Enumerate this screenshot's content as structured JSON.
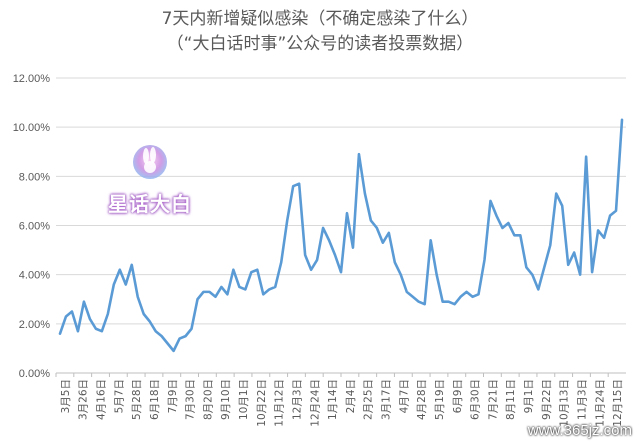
{
  "chart_data": {
    "type": "line",
    "title": "7天内新增疑似感染（不确定感染了什么）",
    "subtitle": "（“大白话时事”公众号的读者投票数据）",
    "ylim": [
      0,
      12
    ],
    "y_ticks": [
      "0.00%",
      "2.00%",
      "4.00%",
      "6.00%",
      "8.00%",
      "10.00%",
      "12.00%"
    ],
    "y_unit": "%",
    "grid": "horizontal",
    "x_tick_labels": [
      "3月5日",
      "3月26日",
      "4月16日",
      "5月7日",
      "5月28日",
      "6月18日",
      "7月9日",
      "7月30日",
      "8月20日",
      "9月10日",
      "10月1日",
      "10月22日",
      "11月12日",
      "12月3日",
      "12月24日",
      "1月14日",
      "2月4日",
      "2月25日",
      "3月17日",
      "4月7日",
      "4月28日",
      "5月19日",
      "6月9日",
      "6月30日",
      "7月21日",
      "8月11日",
      "9月1日",
      "9月22日",
      "10月13日",
      "11月3日",
      "11月24日",
      "12月15日"
    ],
    "series": [
      {
        "color": "#5b9bd5",
        "values": [
          1.6,
          2.3,
          2.5,
          1.7,
          2.9,
          2.2,
          1.8,
          1.7,
          2.4,
          3.6,
          4.2,
          3.6,
          4.4,
          3.1,
          2.4,
          2.1,
          1.7,
          1.5,
          1.2,
          0.9,
          1.4,
          1.5,
          1.8,
          3.0,
          3.3,
          3.3,
          3.1,
          3.5,
          3.2,
          4.2,
          3.5,
          3.4,
          4.1,
          4.2,
          3.2,
          3.4,
          3.5,
          4.5,
          6.2,
          7.6,
          7.7,
          4.8,
          4.2,
          4.6,
          5.9,
          5.4,
          4.8,
          4.1,
          6.5,
          5.1,
          8.9,
          7.3,
          6.2,
          5.9,
          5.3,
          5.7,
          4.5,
          4.0,
          3.3,
          3.1,
          2.9,
          2.8,
          5.4,
          4.0,
          2.9,
          2.9,
          2.8,
          3.1,
          3.3,
          3.1,
          3.2,
          4.6,
          7.0,
          6.4,
          5.9,
          6.1,
          5.6,
          5.6,
          4.3,
          4.0,
          3.4,
          4.3,
          5.2,
          7.3,
          6.8,
          4.4,
          4.9,
          4.0,
          8.8,
          4.1,
          5.8,
          5.5,
          6.4,
          6.6,
          10.3
        ]
      }
    ]
  },
  "watermark": {
    "logo_text": "星话大白",
    "site_text": "www.365jz.com",
    "logo_color": "#b06ad0"
  }
}
